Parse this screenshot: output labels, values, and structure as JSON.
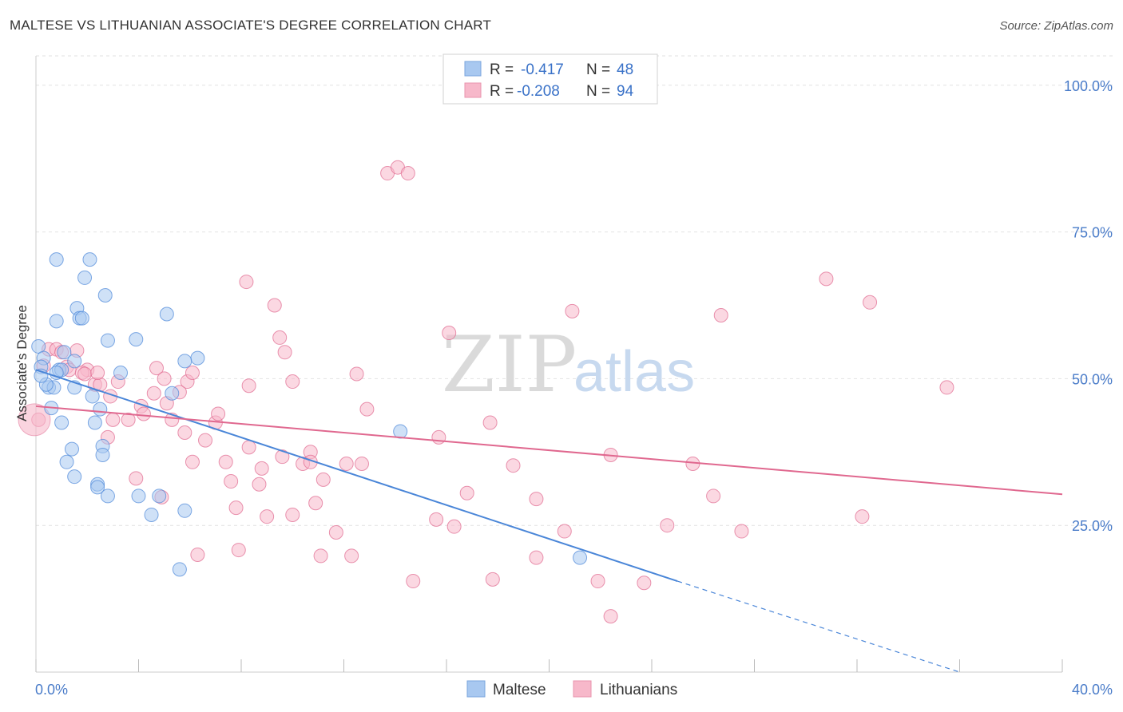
{
  "header": {
    "title": "MALTESE VS LITHUANIAN ASSOCIATE'S DEGREE CORRELATION CHART",
    "source": "Source: ZipAtlas.com"
  },
  "watermark": {
    "zip": "ZIP",
    "atlas": "atlas"
  },
  "legend_top": {
    "rows": [
      {
        "r_label": "R =",
        "r_value": "-0.417",
        "n_label": "N =",
        "n_value": "48",
        "color": "#a8c8f0"
      },
      {
        "r_label": "R =",
        "r_value": "-0.208",
        "n_label": "N =",
        "n_value": "94",
        "color": "#f7b8ca"
      }
    ]
  },
  "legend_bottom": [
    {
      "label": "Maltese",
      "color": "#a8c8f0"
    },
    {
      "label": "Lithuanians",
      "color": "#f7b8ca"
    }
  ],
  "chart_data": {
    "type": "scatter",
    "xlabel": "",
    "ylabel": "Associate's Degree",
    "xlim": [
      0,
      40
    ],
    "ylim": [
      0,
      105
    ],
    "x_tick_labels": [
      "0.0%",
      "40.0%"
    ],
    "y_tick_labels": [
      "100.0%",
      "75.0%",
      "50.0%",
      "25.0%"
    ],
    "y_ticks": [
      100,
      75,
      50,
      25
    ],
    "grid": true,
    "series": [
      {
        "name": "Maltese",
        "color": "#4a86d8",
        "fill": "#a8c8f0",
        "trend": {
          "x0": 0,
          "y0": 51.5,
          "x1": 25,
          "y1": 15.5,
          "dash_to_x": 36,
          "dash_to_y": 0
        },
        "points": [
          [
            0.1,
            55.5
          ],
          [
            0.3,
            53.5
          ],
          [
            0.2,
            52.0
          ],
          [
            0.5,
            48.5
          ],
          [
            0.7,
            48.5
          ],
          [
            0.4,
            49.0
          ],
          [
            0.6,
            45.0
          ],
          [
            0.9,
            51.5
          ],
          [
            1.0,
            51.5
          ],
          [
            0.8,
            51.0
          ],
          [
            1.1,
            54.5
          ],
          [
            1.5,
            53.0
          ],
          [
            1.5,
            48.5
          ],
          [
            1.0,
            42.5
          ],
          [
            1.4,
            38.0
          ],
          [
            1.2,
            35.8
          ],
          [
            1.5,
            33.3
          ],
          [
            2.3,
            42.5
          ],
          [
            2.6,
            38.5
          ],
          [
            2.6,
            37.0
          ],
          [
            2.5,
            44.8
          ],
          [
            2.4,
            32.0
          ],
          [
            2.4,
            31.5
          ],
          [
            2.8,
            30.0
          ],
          [
            0.8,
            70.3
          ],
          [
            2.1,
            70.3
          ],
          [
            1.9,
            67.2
          ],
          [
            2.7,
            64.2
          ],
          [
            1.6,
            62.0
          ],
          [
            1.7,
            60.3
          ],
          [
            1.8,
            60.3
          ],
          [
            0.8,
            59.8
          ],
          [
            2.8,
            56.5
          ],
          [
            3.9,
            56.7
          ],
          [
            3.3,
            51.0
          ],
          [
            2.2,
            47.0
          ],
          [
            5.1,
            61.0
          ],
          [
            5.3,
            47.5
          ],
          [
            6.3,
            53.5
          ],
          [
            5.8,
            53.0
          ],
          [
            4.8,
            30.0
          ],
          [
            4.5,
            26.8
          ],
          [
            5.8,
            27.5
          ],
          [
            5.6,
            17.5
          ],
          [
            14.2,
            41.0
          ],
          [
            21.2,
            19.5
          ],
          [
            0.2,
            50.5
          ],
          [
            4.0,
            30.0
          ]
        ]
      },
      {
        "name": "Lithuanians",
        "color": "#e0688f",
        "fill": "#f7b8ca",
        "trend": {
          "x0": 0,
          "y0": 45.3,
          "x1": 40,
          "y1": 30.3
        },
        "points": [
          [
            0.1,
            43.0
          ],
          [
            0.5,
            55.0
          ],
          [
            0.8,
            55.0
          ],
          [
            1.0,
            54.5
          ],
          [
            1.2,
            52.0
          ],
          [
            1.3,
            51.5
          ],
          [
            2.0,
            51.5
          ],
          [
            1.8,
            51.0
          ],
          [
            1.9,
            50.8
          ],
          [
            2.3,
            49.0
          ],
          [
            2.5,
            49.0
          ],
          [
            2.9,
            47.0
          ],
          [
            3.2,
            49.5
          ],
          [
            3.0,
            43.0
          ],
          [
            2.8,
            40.0
          ],
          [
            3.6,
            43.0
          ],
          [
            4.1,
            45.3
          ],
          [
            4.2,
            44.0
          ],
          [
            4.6,
            47.5
          ],
          [
            4.7,
            51.8
          ],
          [
            5.1,
            45.8
          ],
          [
            5.3,
            43.0
          ],
          [
            5.6,
            47.7
          ],
          [
            5.8,
            40.8
          ],
          [
            5.9,
            49.5
          ],
          [
            6.1,
            35.8
          ],
          [
            6.1,
            51.0
          ],
          [
            6.6,
            39.5
          ],
          [
            7.0,
            42.5
          ],
          [
            7.1,
            44.0
          ],
          [
            7.4,
            35.8
          ],
          [
            7.6,
            32.5
          ],
          [
            7.8,
            28.0
          ],
          [
            7.9,
            20.8
          ],
          [
            8.2,
            66.5
          ],
          [
            8.3,
            48.8
          ],
          [
            8.3,
            38.3
          ],
          [
            8.7,
            32.0
          ],
          [
            8.8,
            34.7
          ],
          [
            9.0,
            26.5
          ],
          [
            9.3,
            62.5
          ],
          [
            9.5,
            57.0
          ],
          [
            9.6,
            36.7
          ],
          [
            9.7,
            54.5
          ],
          [
            10.0,
            26.8
          ],
          [
            10.0,
            49.5
          ],
          [
            10.4,
            35.5
          ],
          [
            10.7,
            37.5
          ],
          [
            10.7,
            35.8
          ],
          [
            10.9,
            28.8
          ],
          [
            11.2,
            32.8
          ],
          [
            11.1,
            19.8
          ],
          [
            11.7,
            23.8
          ],
          [
            12.1,
            35.5
          ],
          [
            12.5,
            50.8
          ],
          [
            12.3,
            19.8
          ],
          [
            12.7,
            35.5
          ],
          [
            12.9,
            44.8
          ],
          [
            13.7,
            85.0
          ],
          [
            14.1,
            86.0
          ],
          [
            14.5,
            85.0
          ],
          [
            14.7,
            15.5
          ],
          [
            15.6,
            26.0
          ],
          [
            15.7,
            40.0
          ],
          [
            16.1,
            57.8
          ],
          [
            16.3,
            24.8
          ],
          [
            16.8,
            30.5
          ],
          [
            17.7,
            42.5
          ],
          [
            17.8,
            15.8
          ],
          [
            18.6,
            35.2
          ],
          [
            19.5,
            29.5
          ],
          [
            19.5,
            19.5
          ],
          [
            20.6,
            24.0
          ],
          [
            20.9,
            61.5
          ],
          [
            21.9,
            15.5
          ],
          [
            22.4,
            37.0
          ],
          [
            22.4,
            9.5
          ],
          [
            23.7,
            15.2
          ],
          [
            24.6,
            25.0
          ],
          [
            25.6,
            35.5
          ],
          [
            26.4,
            30.0
          ],
          [
            26.7,
            60.8
          ],
          [
            27.5,
            24.0
          ],
          [
            30.8,
            67.0
          ],
          [
            32.5,
            63.0
          ],
          [
            32.2,
            26.5
          ],
          [
            35.5,
            48.5
          ],
          [
            6.3,
            20.0
          ],
          [
            3.9,
            33.0
          ],
          [
            4.9,
            29.8
          ],
          [
            0.3,
            52.2
          ],
          [
            1.6,
            54.8
          ],
          [
            2.4,
            51.0
          ],
          [
            5.0,
            50.0
          ]
        ]
      }
    ]
  }
}
